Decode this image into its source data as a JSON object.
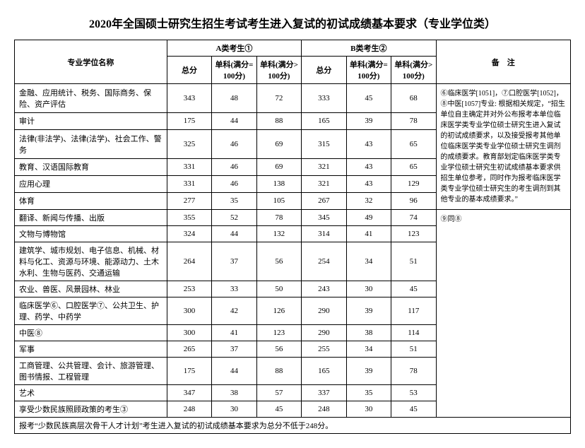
{
  "title": "2020年全国硕士研究生招生考试考生进入复试的初试成绩基本要求（专业学位类）",
  "headers": {
    "name": "专业学位名称",
    "groupA": "A类考生①",
    "groupB": "B类考生②",
    "total": "总分",
    "sub100": "单科(满分=100分)",
    "subOver100": "单科(满分>100分)",
    "notes": "备　注"
  },
  "rows": [
    {
      "name": "金融、应用统计、税务、国际商务、保险、资产评估",
      "a": [
        343,
        48,
        72
      ],
      "b": [
        333,
        45,
        68
      ]
    },
    {
      "name": "审计",
      "a": [
        175,
        44,
        88
      ],
      "b": [
        165,
        39,
        78
      ]
    },
    {
      "name": "法律(非法学)、法律(法学)、社会工作、警务",
      "a": [
        325,
        46,
        69
      ],
      "b": [
        315,
        43,
        65
      ]
    },
    {
      "name": "教育、汉语国际教育",
      "a": [
        331,
        46,
        69
      ],
      "b": [
        321,
        43,
        65
      ]
    },
    {
      "name": "应用心理",
      "a": [
        331,
        46,
        138
      ],
      "b": [
        321,
        43,
        129
      ]
    },
    {
      "name": "体育",
      "a": [
        277,
        35,
        105
      ],
      "b": [
        267,
        32,
        96
      ]
    },
    {
      "name": "翻译、新闻与传播、出版",
      "a": [
        355,
        52,
        78
      ],
      "b": [
        345,
        49,
        74
      ]
    },
    {
      "name": "文物与博物馆",
      "a": [
        324,
        44,
        132
      ],
      "b": [
        314,
        41,
        123
      ]
    },
    {
      "name": "建筑学、城市规划、电子信息、机械、材料与化工、资源与环境、能源动力、土木水利、生物与医药、交通运输",
      "a": [
        264,
        37,
        56
      ],
      "b": [
        254,
        34,
        51
      ]
    },
    {
      "name": "农业、兽医、风景园林、林业",
      "a": [
        253,
        33,
        50
      ],
      "b": [
        243,
        30,
        45
      ]
    },
    {
      "name": "临床医学⑥、口腔医学⑦、公共卫生、护理、药学、中药学",
      "a": [
        300,
        42,
        126
      ],
      "b": [
        290,
        39,
        117
      ]
    },
    {
      "name": "中医⑧",
      "a": [
        300,
        41,
        123
      ],
      "b": [
        290,
        38,
        114
      ]
    },
    {
      "name": "军事",
      "a": [
        265,
        37,
        56
      ],
      "b": [
        255,
        34,
        51
      ]
    },
    {
      "name": "工商管理、公共管理、会计、旅游管理、图书情报、工程管理",
      "a": [
        175,
        44,
        88
      ],
      "b": [
        165,
        39,
        78
      ]
    },
    {
      "name": "艺术",
      "a": [
        347,
        38,
        57
      ],
      "b": [
        337,
        35,
        53
      ]
    },
    {
      "name": "享受少数民族照顾政策的考生③",
      "a": [
        248,
        30,
        45
      ],
      "b": [
        248,
        30,
        45
      ]
    }
  ],
  "notesTop": "⑥临床医学[1051]，⑦口腔医学[1052]，⑧中医[1057]专业:\n根据相关规定，“招生单位自主确定并对外公布报考本单位临床医学类专业学位硕士研究生进入复试的初试成绩要求，以及接受报考其他单位临床医学类专业学位硕士研究生调剂的成绩要求。教育部划定临床医学类专业学位硕士研究生初试成绩基本要求供招生单位参考，同时作为报考临床医学类专业学位硕士研究生的考生调剂到其他专业的基本成绩要求。”",
  "notesBottom": "⑨同⑧",
  "footer": "报考“少数民族高层次骨干人才计划”考生进入复试的初试成绩基本要求为总分不低于248分。"
}
